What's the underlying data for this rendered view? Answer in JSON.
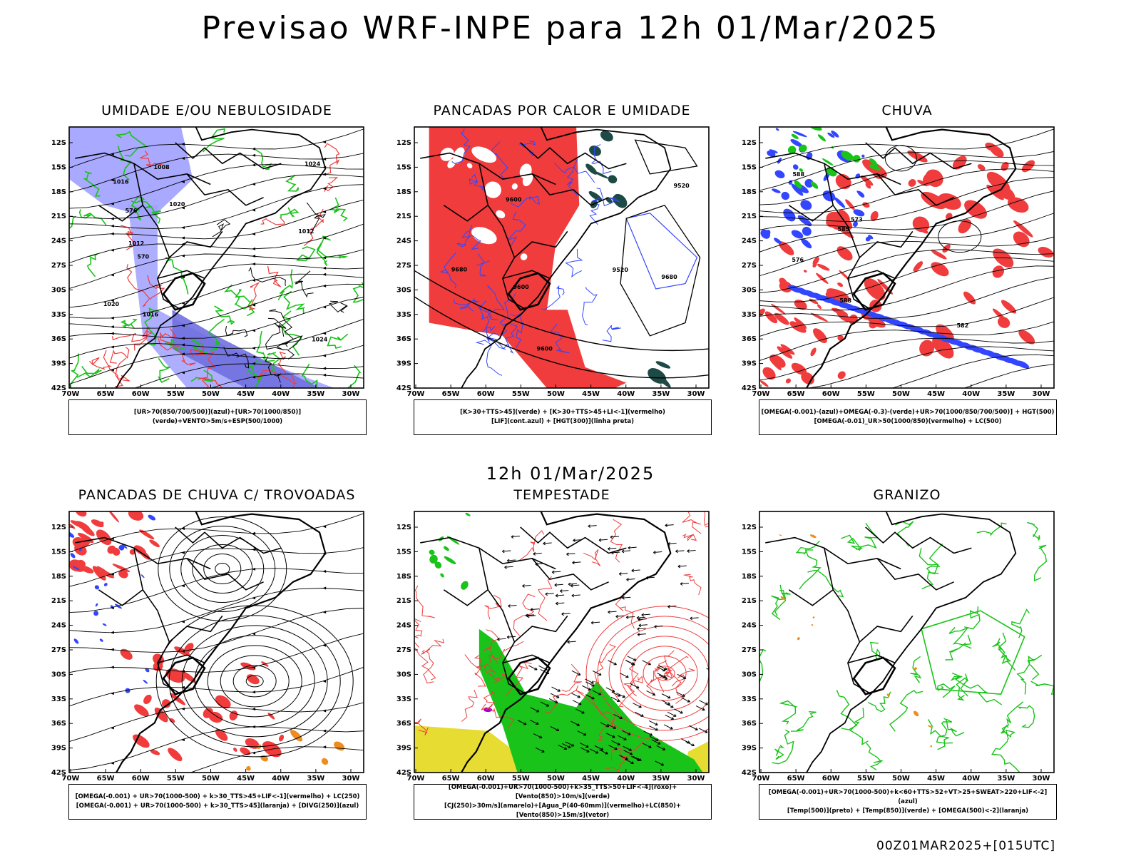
{
  "title": "Previsao WRF-INPE  para 12h 01/Mar/2025",
  "mid_title": "12h 01/Mar/2025",
  "footer": "00Z01MAR2025+[015UTC]",
  "lat_ticks": [
    "12S",
    "15S",
    "18S",
    "21S",
    "24S",
    "27S",
    "30S",
    "33S",
    "36S",
    "39S",
    "42S"
  ],
  "lon_ticks": [
    "70W",
    "65W",
    "60W",
    "55W",
    "50W",
    "45W",
    "40W",
    "35W",
    "30W"
  ],
  "colors": {
    "red": "#f03c3c",
    "green": "#19c319",
    "blue": "#3246ff",
    "lightblue": "#a0a0ff",
    "darkteal": "#1e4a46",
    "yellow": "#e6dc32",
    "orange": "#f08c1e",
    "purple": "#a000c8"
  },
  "panels": [
    {
      "id": "p1",
      "title": "UMIDADE E/OU NEBULOSIDADE",
      "legend_lines": [
        "[UR>70(850/700/500)](azul)+[UR>70(1000/850)](verde)+VENTO>5m/s+ESP(500/1000)"
      ],
      "labels": [
        {
          "t": "1012"
        },
        {
          "t": "1016"
        },
        {
          "t": "1016"
        },
        {
          "t": "1020"
        },
        {
          "t": "1020"
        },
        {
          "t": "1024"
        },
        {
          "t": "1024"
        },
        {
          "t": "1012"
        },
        {
          "t": "1008"
        },
        {
          "t": "576"
        },
        {
          "t": "570"
        }
      ]
    },
    {
      "id": "p2",
      "title": "PANCADAS POR CALOR E UMIDADE",
      "legend_lines": [
        "[K>30+TTS>45](verde) + [K>30+TTS>45+LI<-1](vermelho)",
        "[LIF](cont.azul) + [HGT(300)](linha preta)"
      ],
      "labels": [
        {
          "t": "9600"
        },
        {
          "t": "9680"
        },
        {
          "t": "9680"
        },
        {
          "t": "9600"
        },
        {
          "t": "9520"
        },
        {
          "t": "9520"
        },
        {
          "t": "9600"
        }
      ]
    },
    {
      "id": "p3",
      "title": "CHUVA",
      "legend_lines": [
        "[OMEGA(-0.001)-(azul)+OMEGA(-0.3)-(verde)+UR>70(1000/850/700/500)] + HGT(500)",
        "[OMEGA(-0.01)_UR>50(1000/850)(vermelho) + LC(500)"
      ],
      "labels": [
        {
          "t": "585"
        },
        {
          "t": "588"
        },
        {
          "t": "582"
        },
        {
          "t": "576"
        },
        {
          "t": "573"
        },
        {
          "t": "588"
        }
      ]
    },
    {
      "id": "p4",
      "title": "PANCADAS DE CHUVA C/ TROVOADAS",
      "legend_lines": [
        "[OMEGA(-0.001) + UR>70(1000-500) + k>30_TTS>45+LIF<-1](vermelho) + LC(250)",
        "[OMEGA(-0.001) + UR>70(1000-500) + k>30_TTS>45](laranja) + [DIVG(250)](azul)"
      ],
      "labels": []
    },
    {
      "id": "p5",
      "title": "TEMPESTADE",
      "legend_lines": [
        "[OMEGA(-0.001)+UR>70(1000-500)+k>35_TTS>50+LIF<-4](roxo)+[Vento(850)>10m/s](verde)",
        "[CJ(250)>30m/s](amarelo)+[Agua_P(40-60mm)](vermelho)+LC(850)+[Vento(850)>15m/s](vetor)"
      ],
      "labels": []
    },
    {
      "id": "p6",
      "title": "GRANIZO",
      "legend_lines": [
        "[OMEGA(-0.001)+UR>70(1000-500)+k<60+TTS>52+VT>25+SWEAT>220+LIF<-2](azul)",
        "[Temp(500)](preto) + [Temp(850)](verde) + [OMEGA(500)<-2](laranja)"
      ],
      "labels": []
    }
  ]
}
